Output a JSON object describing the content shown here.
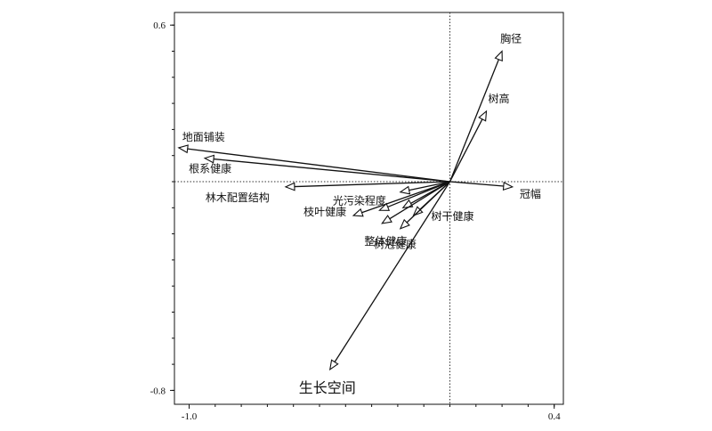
{
  "chart_data": {
    "type": "biplot",
    "title": "",
    "xlabel": "",
    "ylabel": "",
    "xlim": [
      -1.0,
      0.4
    ],
    "ylim": [
      -0.8,
      0.6
    ],
    "x_ticks": [
      -1.0,
      0.4
    ],
    "x_tick_labels": [
      "-1.0",
      "0.4"
    ],
    "y_ticks": [
      0.6,
      -0.8
    ],
    "y_tick_labels": [
      "0.6",
      "-0.8"
    ],
    "grid": false,
    "reference_lines": "dashed at x=0 and y=0",
    "arrows": [
      {
        "name": "胸径",
        "x": 0.2,
        "y": 0.5
      },
      {
        "name": "树高",
        "x": 0.14,
        "y": 0.27
      },
      {
        "name": "地面铺装",
        "x": -1.04,
        "y": 0.13
      },
      {
        "name": "根系健康",
        "x": -0.94,
        "y": 0.09
      },
      {
        "name": "冠幅",
        "x": 0.24,
        "y": -0.02
      },
      {
        "name": "林木配置结构",
        "x": -0.63,
        "y": -0.02
      },
      {
        "name": "光污染程度",
        "x": -0.19,
        "y": -0.04
      },
      {
        "name": "枝叶健康",
        "x": -0.37,
        "y": -0.13
      },
      {
        "name": "",
        "x": -0.27,
        "y": -0.11
      },
      {
        "name": "",
        "x": -0.18,
        "y": -0.1
      },
      {
        "name": "树干健康",
        "x": -0.14,
        "y": -0.13
      },
      {
        "name": "整体健康",
        "x": -0.26,
        "y": -0.16
      },
      {
        "name": "树冠健康",
        "x": -0.19,
        "y": -0.18
      },
      {
        "name": "生长空间",
        "x": -0.46,
        "y": -0.72
      }
    ]
  }
}
